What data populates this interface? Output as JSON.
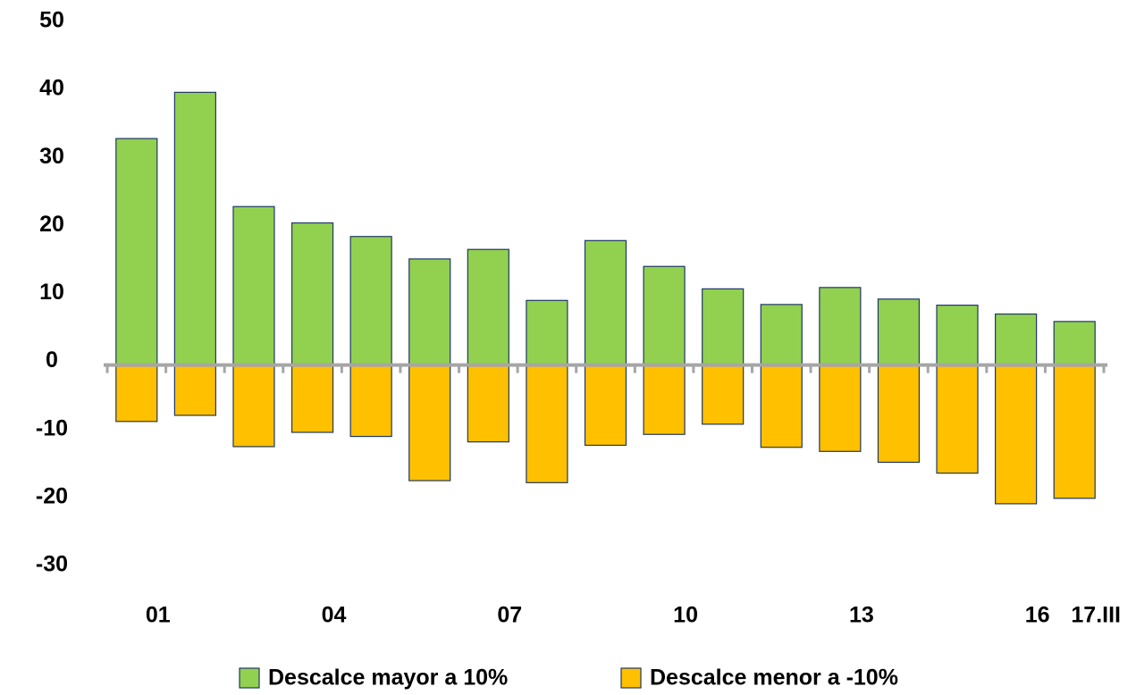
{
  "chart_data": {
    "type": "bar",
    "categories": [
      "01",
      null,
      null,
      "04",
      null,
      null,
      "07",
      null,
      null,
      "10",
      null,
      null,
      "13",
      null,
      null,
      "16",
      "17.III"
    ],
    "series": [
      {
        "name": "Descalce mayor a 10%",
        "color": "#92d050",
        "values": [
          33.3,
          40.1,
          23.3,
          20.9,
          18.9,
          15.6,
          17.0,
          9.5,
          18.3,
          14.5,
          11.2,
          8.9,
          11.4,
          9.7,
          8.8,
          7.5,
          6.4
        ]
      },
      {
        "name": "Descalce menor a -10%",
        "color": "#ffc000",
        "values": [
          -8.3,
          -7.4,
          -12.0,
          -9.9,
          -10.5,
          -17.0,
          -11.3,
          -17.3,
          -11.8,
          -10.2,
          -8.7,
          -12.1,
          -12.7,
          -14.3,
          -15.9,
          -20.4,
          -19.6
        ]
      }
    ],
    "ylim": [
      -30,
      50
    ],
    "yticks": [
      -30,
      -20,
      -10,
      0,
      10,
      20,
      30,
      40,
      50
    ],
    "grid": false,
    "legend": "bottom"
  }
}
